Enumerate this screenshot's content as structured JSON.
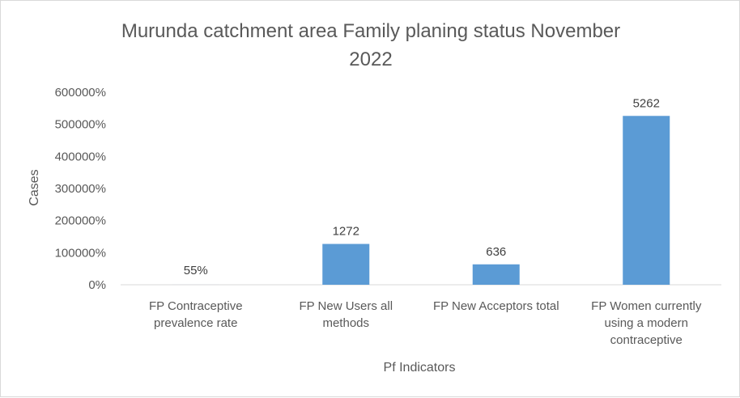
{
  "chart_data": {
    "type": "bar",
    "title_lines": [
      "Murunda catchment area Family planing status November",
      "2022"
    ],
    "xlabel": "Pf Indicators",
    "ylabel": "Cases",
    "categories": [
      [
        "FP Contraceptive",
        "prevalence rate"
      ],
      [
        "FP New Users all",
        "methods"
      ],
      [
        "FP New Acceptors total"
      ],
      [
        "FP Women currently",
        "using a modern",
        "contraceptive"
      ]
    ],
    "values": [
      0.55,
      1272,
      636,
      5262
    ],
    "data_labels": [
      "55%",
      "1272",
      "636",
      "5262"
    ],
    "ylim": [
      0,
      6000
    ],
    "yticks": [
      0,
      1000,
      2000,
      3000,
      4000,
      5000,
      6000
    ],
    "ytick_labels": [
      "0%",
      "100000%",
      "200000%",
      "300000%",
      "400000%",
      "500000%",
      "600000%"
    ],
    "grid": false,
    "legend": "none",
    "bar_color": "#5b9bd5",
    "axis_color": "#d9d9d9",
    "text_color": "#595959"
  }
}
